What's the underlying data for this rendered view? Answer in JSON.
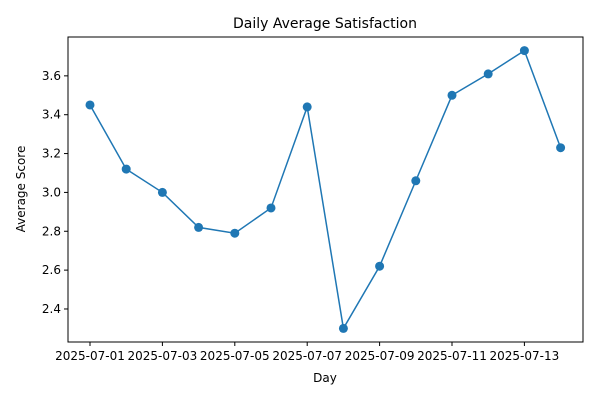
{
  "chart_data": {
    "type": "line",
    "title": "Daily Average Satisfaction",
    "xlabel": "Day",
    "ylabel": "Average Score",
    "x": [
      "2025-07-01",
      "2025-07-02",
      "2025-07-03",
      "2025-07-04",
      "2025-07-05",
      "2025-07-06",
      "2025-07-07",
      "2025-07-08",
      "2025-07-09",
      "2025-07-10",
      "2025-07-11",
      "2025-07-12",
      "2025-07-13",
      "2025-07-14"
    ],
    "series": [
      {
        "values": [
          3.45,
          3.12,
          3.0,
          2.82,
          2.79,
          2.92,
          3.44,
          2.3,
          2.62,
          3.06,
          3.5,
          3.61,
          3.73,
          3.23
        ],
        "color": "#1f77b4",
        "marker": "circle"
      }
    ],
    "xticks": [
      "2025-07-01",
      "2025-07-03",
      "2025-07-05",
      "2025-07-07",
      "2025-07-09",
      "2025-07-11",
      "2025-07-13"
    ],
    "yticks": [
      2.4,
      2.6,
      2.8,
      3.0,
      3.2,
      3.4,
      3.6
    ],
    "ylim": [
      2.23,
      3.8
    ],
    "grid": false,
    "legend": "none"
  }
}
